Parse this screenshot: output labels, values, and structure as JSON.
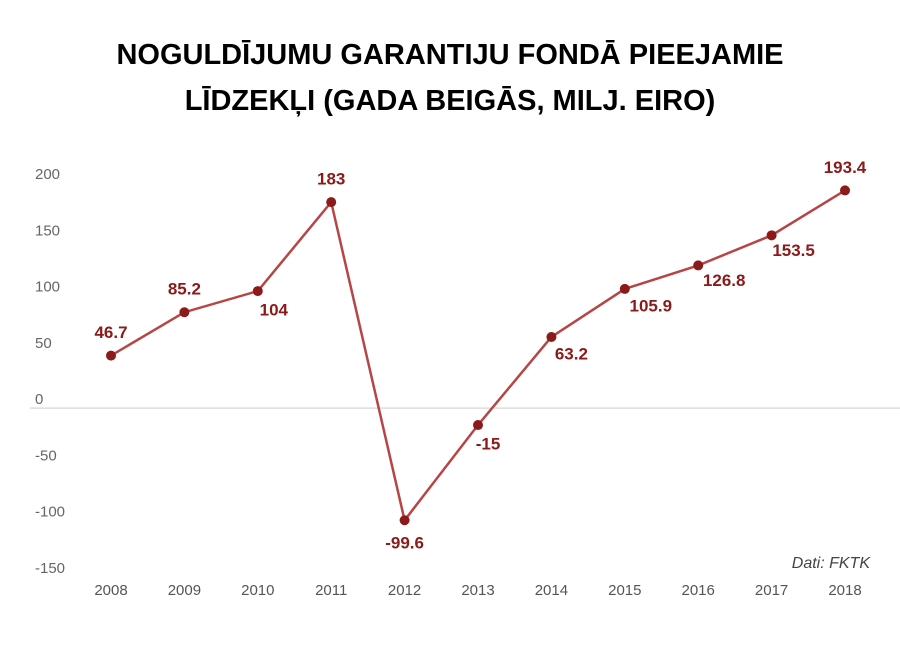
{
  "chart_data": {
    "type": "line",
    "title": "NOGULDĪJUMU GARANTIJU FONDĀ PIEEJAMIE LĪDZEKĻI (GADA BEIGĀS, MILJ. EIRO)",
    "source": "Dati: FKTK",
    "categories": [
      "2008",
      "2009",
      "2010",
      "2011",
      "2012",
      "2013",
      "2014",
      "2015",
      "2016",
      "2017",
      "2018"
    ],
    "values": [
      46.7,
      85.2,
      104,
      183,
      -99.6,
      -15,
      63.2,
      105.9,
      126.8,
      153.5,
      193.4
    ],
    "color": "#8b1a1a",
    "ylim": [
      -150,
      200
    ],
    "yticks": [
      200,
      150,
      100,
      50,
      0,
      -50,
      -100,
      -150
    ]
  }
}
